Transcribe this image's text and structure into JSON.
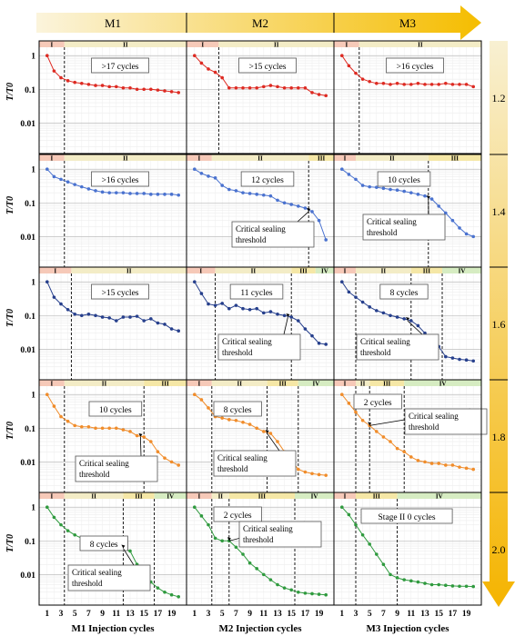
{
  "figure": {
    "column_headers": [
      "M1",
      "M2",
      "M3"
    ],
    "row_labels": [
      "1.2",
      "1.4",
      "1.6",
      "1.8",
      "2.0"
    ],
    "y_axis_label": "T/T0",
    "y_ticks": [
      "1",
      "0.1",
      "0.01"
    ],
    "x_axis_labels": [
      "M1 Injection cycles",
      "M2 Injection cycles",
      "M3 Injection cycles"
    ],
    "x_ticks": [
      "1",
      "3",
      "5",
      "7",
      "9",
      "11",
      "13",
      "15",
      "17",
      "19"
    ],
    "annotation_text": "Critical sealing threshold",
    "colors": {
      "header_arrow": "#f5c000",
      "side_arrow": "#f5c000",
      "stage1_band": "#f6c9b8",
      "stage2_band": "#f3ecc6",
      "stage3_band": "#f5e7a6",
      "stage4_band": "#d6ecc2",
      "rows": [
        "#dd2a22",
        "#4a72cf",
        "#263f8c",
        "#f08c2a",
        "#2f9a3e"
      ]
    }
  },
  "chart_data": [
    {
      "type": "line",
      "row": "1.2",
      "col": "M1",
      "color": "#dd2a22",
      "x": [
        1,
        2,
        3,
        4,
        5,
        6,
        7,
        8,
        9,
        10,
        11,
        12,
        13,
        14,
        15,
        16,
        17,
        18,
        19,
        20
      ],
      "y": [
        1,
        0.35,
        0.22,
        0.18,
        0.16,
        0.15,
        0.14,
        0.13,
        0.13,
        0.12,
        0.12,
        0.11,
        0.11,
        0.1,
        0.1,
        0.1,
        0.095,
        0.09,
        0.085,
        0.08
      ],
      "stages": [
        {
          "label": "I",
          "from": 1,
          "to": 3.5
        },
        {
          "label": "II",
          "from": 3.5,
          "to": 20
        }
      ],
      "boundaries": [
        3.5
      ],
      "cycles_label": ">17 cycles",
      "callout": false
    },
    {
      "type": "line",
      "row": "1.2",
      "col": "M2",
      "color": "#dd2a22",
      "x": [
        1,
        2,
        3,
        4,
        5,
        6,
        7,
        8,
        9,
        10,
        11,
        12,
        13,
        14,
        15,
        16,
        17,
        18,
        19,
        20
      ],
      "y": [
        1,
        0.6,
        0.4,
        0.32,
        0.22,
        0.11,
        0.11,
        0.11,
        0.11,
        0.11,
        0.12,
        0.13,
        0.12,
        0.11,
        0.11,
        0.11,
        0.11,
        0.08,
        0.07,
        0.065
      ],
      "stages": [
        {
          "label": "I",
          "from": 1,
          "to": 4.5
        },
        {
          "label": "II",
          "from": 4.5,
          "to": 20
        }
      ],
      "boundaries": [
        4.5
      ],
      "cycles_label": ">15 cycles",
      "callout": false
    },
    {
      "type": "line",
      "row": "1.2",
      "col": "M3",
      "color": "#dd2a22",
      "x": [
        1,
        2,
        3,
        4,
        5,
        6,
        7,
        8,
        9,
        10,
        11,
        12,
        13,
        14,
        15,
        16,
        17,
        18,
        19,
        20
      ],
      "y": [
        1,
        0.5,
        0.3,
        0.2,
        0.17,
        0.15,
        0.15,
        0.14,
        0.15,
        0.14,
        0.14,
        0.15,
        0.14,
        0.14,
        0.14,
        0.15,
        0.14,
        0.14,
        0.14,
        0.12
      ],
      "stages": [
        {
          "label": "I",
          "from": 1,
          "to": 3.5
        },
        {
          "label": "II",
          "from": 3.5,
          "to": 20
        }
      ],
      "boundaries": [
        3.5
      ],
      "cycles_label": ">16 cycles",
      "callout": false
    },
    {
      "type": "line",
      "row": "1.4",
      "col": "M1",
      "color": "#4a72cf",
      "x": [
        1,
        2,
        3,
        4,
        5,
        6,
        7,
        8,
        9,
        10,
        11,
        12,
        13,
        14,
        15,
        16,
        17,
        18,
        19,
        20
      ],
      "y": [
        1,
        0.6,
        0.5,
        0.42,
        0.35,
        0.3,
        0.26,
        0.23,
        0.21,
        0.2,
        0.2,
        0.2,
        0.19,
        0.19,
        0.19,
        0.18,
        0.18,
        0.18,
        0.18,
        0.17
      ],
      "stages": [
        {
          "label": "I",
          "from": 1,
          "to": 3.5
        },
        {
          "label": "II",
          "from": 3.5,
          "to": 20
        }
      ],
      "boundaries": [
        3.5
      ],
      "cycles_label": ">16 cycles",
      "callout": false
    },
    {
      "type": "line",
      "row": "1.4",
      "col": "M2",
      "color": "#4a72cf",
      "x": [
        1,
        2,
        3,
        4,
        5,
        6,
        7,
        8,
        9,
        10,
        11,
        12,
        13,
        14,
        15,
        16,
        17,
        18,
        19,
        20
      ],
      "y": [
        1,
        0.75,
        0.62,
        0.55,
        0.33,
        0.25,
        0.23,
        0.2,
        0.19,
        0.18,
        0.17,
        0.16,
        0.12,
        0.1,
        0.09,
        0.08,
        0.07,
        0.055,
        0.03,
        0.008
      ],
      "stages": [
        {
          "label": "I",
          "from": 1,
          "to": 3.5
        },
        {
          "label": "II",
          "from": 3.5,
          "to": 17.5
        },
        {
          "label": "III",
          "from": 17.5,
          "to": 20
        }
      ],
      "boundaries": [
        17.5
      ],
      "cycles_label": "12 cycles",
      "callout": true,
      "arrow_x": 17.5
    },
    {
      "type": "line",
      "row": "1.4",
      "col": "M3",
      "color": "#4a72cf",
      "x": [
        1,
        2,
        3,
        4,
        5,
        6,
        7,
        8,
        9,
        10,
        11,
        12,
        13,
        14,
        15,
        16,
        17,
        18,
        19,
        20
      ],
      "y": [
        1,
        0.7,
        0.5,
        0.33,
        0.3,
        0.29,
        0.27,
        0.25,
        0.24,
        0.22,
        0.2,
        0.18,
        0.16,
        0.13,
        0.08,
        0.05,
        0.03,
        0.018,
        0.012,
        0.01
      ],
      "stages": [
        {
          "label": "I",
          "from": 1,
          "to": 3
        },
        {
          "label": "II",
          "from": 3,
          "to": 13.5
        },
        {
          "label": "III",
          "from": 13.5,
          "to": 20
        }
      ],
      "boundaries": [
        13.5
      ],
      "cycles_label": "10 cycles",
      "callout": true,
      "arrow_x": 13.5
    },
    {
      "type": "line",
      "row": "1.6",
      "col": "M1",
      "color": "#263f8c",
      "x": [
        1,
        2,
        3,
        4,
        5,
        6,
        7,
        8,
        9,
        10,
        11,
        12,
        13,
        14,
        15,
        16,
        17,
        18,
        19,
        20
      ],
      "y": [
        1,
        0.35,
        0.22,
        0.15,
        0.11,
        0.1,
        0.11,
        0.1,
        0.09,
        0.085,
        0.07,
        0.09,
        0.09,
        0.095,
        0.07,
        0.08,
        0.06,
        0.055,
        0.04,
        0.035
      ],
      "stages": [
        {
          "label": "I",
          "from": 1,
          "to": 4.5
        },
        {
          "label": "II",
          "from": 4.5,
          "to": 20
        }
      ],
      "boundaries": [
        4.5
      ],
      "cycles_label": ">15 cycles",
      "callout": false
    },
    {
      "type": "line",
      "row": "1.6",
      "col": "M2",
      "color": "#263f8c",
      "x": [
        1,
        2,
        3,
        4,
        5,
        6,
        7,
        8,
        9,
        10,
        11,
        12,
        13,
        14,
        15,
        16,
        17,
        18,
        19,
        20
      ],
      "y": [
        1,
        0.45,
        0.22,
        0.2,
        0.23,
        0.16,
        0.2,
        0.16,
        0.15,
        0.16,
        0.12,
        0.13,
        0.11,
        0.1,
        0.09,
        0.07,
        0.04,
        0.025,
        0.015,
        0.014
      ],
      "stages": [
        {
          "label": "I",
          "from": 1,
          "to": 4
        },
        {
          "label": "II",
          "from": 4,
          "to": 15
        },
        {
          "label": "III",
          "from": 15,
          "to": 18.5
        },
        {
          "label": "IV",
          "from": 18.5,
          "to": 20
        }
      ],
      "boundaries": [
        4,
        15
      ],
      "cycles_label": "11 cycles",
      "callout": true,
      "arrow_x": 14.5
    },
    {
      "type": "line",
      "row": "1.6",
      "col": "M3",
      "color": "#263f8c",
      "x": [
        1,
        2,
        3,
        4,
        5,
        6,
        7,
        8,
        9,
        10,
        11,
        12,
        13,
        14,
        15,
        16,
        17,
        18,
        19,
        20
      ],
      "y": [
        1,
        0.5,
        0.35,
        0.25,
        0.18,
        0.14,
        0.12,
        0.1,
        0.09,
        0.08,
        0.07,
        0.05,
        0.03,
        0.02,
        0.012,
        0.006,
        0.0055,
        0.005,
        0.0048,
        0.0045
      ],
      "stages": [
        {
          "label": "I",
          "from": 1,
          "to": 3
        },
        {
          "label": "II",
          "from": 3,
          "to": 11
        },
        {
          "label": "III",
          "from": 11,
          "to": 15.5
        },
        {
          "label": "IV",
          "from": 15.5,
          "to": 20
        }
      ],
      "boundaries": [
        3,
        11,
        15.5
      ],
      "cycles_label": "8 cycles",
      "callout": true,
      "arrow_x": 10.5
    },
    {
      "type": "line",
      "row": "1.8",
      "col": "M1",
      "color": "#f08c2a",
      "x": [
        1,
        2,
        3,
        4,
        5,
        6,
        7,
        8,
        9,
        10,
        11,
        12,
        13,
        14,
        15,
        16,
        17,
        18,
        19,
        20
      ],
      "y": [
        1,
        0.45,
        0.22,
        0.16,
        0.12,
        0.11,
        0.11,
        0.1,
        0.1,
        0.1,
        0.1,
        0.09,
        0.08,
        0.06,
        0.055,
        0.04,
        0.02,
        0.013,
        0.01,
        0.008
      ],
      "stages": [
        {
          "label": "I",
          "from": 1,
          "to": 3.5
        },
        {
          "label": "II",
          "from": 3.5,
          "to": 15
        },
        {
          "label": "III",
          "from": 15,
          "to": 20
        }
      ],
      "boundaries": [
        3.5,
        15
      ],
      "cycles_label": "10 cycles",
      "callout": true,
      "arrow_x": 14.5
    },
    {
      "type": "line",
      "row": "1.8",
      "col": "M2",
      "color": "#f08c2a",
      "x": [
        1,
        2,
        3,
        4,
        5,
        6,
        7,
        8,
        9,
        10,
        11,
        12,
        13,
        14,
        15,
        16,
        17,
        18,
        19,
        20
      ],
      "y": [
        1,
        0.7,
        0.4,
        0.22,
        0.2,
        0.18,
        0.17,
        0.15,
        0.13,
        0.1,
        0.08,
        0.07,
        0.04,
        0.02,
        0.011,
        0.006,
        0.005,
        0.0045,
        0.0042,
        0.004
      ],
      "stages": [
        {
          "label": "I",
          "from": 1,
          "to": 3.5
        },
        {
          "label": "II",
          "from": 3.5,
          "to": 11.5
        },
        {
          "label": "III",
          "from": 11.5,
          "to": 16
        },
        {
          "label": "IV",
          "from": 16,
          "to": 20
        }
      ],
      "boundaries": [
        3.5,
        11.5,
        16
      ],
      "cycles_label": "8 cycles",
      "callout": true,
      "arrow_x": 11.5
    },
    {
      "type": "line",
      "row": "1.8",
      "col": "M3",
      "color": "#f08c2a",
      "x": [
        1,
        2,
        3,
        4,
        5,
        6,
        7,
        8,
        9,
        10,
        11,
        12,
        13,
        14,
        15,
        16,
        17,
        18,
        19,
        20
      ],
      "y": [
        1,
        0.55,
        0.3,
        0.17,
        0.12,
        0.08,
        0.055,
        0.04,
        0.025,
        0.02,
        0.014,
        0.011,
        0.01,
        0.009,
        0.009,
        0.008,
        0.008,
        0.007,
        0.0065,
        0.006
      ],
      "stages": [
        {
          "label": "I",
          "from": 1,
          "to": 3
        },
        {
          "label": "II",
          "from": 3,
          "to": 5
        },
        {
          "label": "III",
          "from": 5,
          "to": 10
        },
        {
          "label": "IV",
          "from": 10,
          "to": 20
        }
      ],
      "boundaries": [
        3,
        5,
        10
      ],
      "cycles_label": "2 cycles",
      "callout": true,
      "arrow_x": 5
    },
    {
      "type": "line",
      "row": "2.0",
      "col": "M1",
      "color": "#2f9a3e",
      "x": [
        1,
        2,
        3,
        4,
        5,
        6,
        7,
        8,
        9,
        10,
        11,
        12,
        13,
        14,
        15,
        16,
        17,
        18,
        19,
        20
      ],
      "y": [
        1,
        0.5,
        0.3,
        0.2,
        0.15,
        0.12,
        0.1,
        0.09,
        0.08,
        0.075,
        0.065,
        0.06,
        0.05,
        0.02,
        0.01,
        0.006,
        0.004,
        0.003,
        0.0025,
        0.0022
      ],
      "stages": [
        {
          "label": "I",
          "from": 1,
          "to": 3.5
        },
        {
          "label": "II",
          "from": 3.5,
          "to": 12
        },
        {
          "label": "III",
          "from": 12,
          "to": 16.5
        },
        {
          "label": "IV",
          "from": 16.5,
          "to": 20
        }
      ],
      "boundaries": [
        3.5,
        12,
        16.5
      ],
      "cycles_label": "8 cycles",
      "callout": true,
      "arrow_x": 12
    },
    {
      "type": "line",
      "row": "2.0",
      "col": "M2",
      "color": "#2f9a3e",
      "x": [
        1,
        2,
        3,
        4,
        5,
        6,
        7,
        8,
        9,
        10,
        11,
        12,
        13,
        14,
        15,
        16,
        17,
        18,
        19,
        20
      ],
      "y": [
        1,
        0.55,
        0.3,
        0.12,
        0.1,
        0.1,
        0.065,
        0.04,
        0.022,
        0.015,
        0.01,
        0.007,
        0.005,
        0.004,
        0.0035,
        0.003,
        0.0028,
        0.0027,
        0.0026,
        0.0025
      ],
      "stages": [
        {
          "label": "I",
          "from": 1,
          "to": 3.5
        },
        {
          "label": "II",
          "from": 3.5,
          "to": 6
        },
        {
          "label": "III",
          "from": 6,
          "to": 15.5
        },
        {
          "label": "IV",
          "from": 15.5,
          "to": 20
        }
      ],
      "boundaries": [
        3.5,
        6,
        15.5
      ],
      "cycles_label": "2 cycles",
      "callout": true,
      "arrow_x": 6
    },
    {
      "type": "line",
      "row": "2.0",
      "col": "M3",
      "color": "#2f9a3e",
      "x": [
        1,
        2,
        3,
        4,
        5,
        6,
        7,
        8,
        9,
        10,
        11,
        12,
        13,
        14,
        15,
        16,
        17,
        18,
        19,
        20
      ],
      "y": [
        1,
        0.6,
        0.3,
        0.15,
        0.08,
        0.04,
        0.02,
        0.01,
        0.008,
        0.007,
        0.0065,
        0.006,
        0.0055,
        0.005,
        0.005,
        0.0048,
        0.0046,
        0.0045,
        0.0045,
        0.0044
      ],
      "stages": [
        {
          "label": "I",
          "from": 1,
          "to": 3
        },
        {
          "label": "III",
          "from": 3,
          "to": 9
        },
        {
          "label": "IV",
          "from": 9,
          "to": 20
        }
      ],
      "boundaries": [
        3,
        9
      ],
      "cycles_label": "Stage II 0 cycles",
      "callout": false
    }
  ]
}
